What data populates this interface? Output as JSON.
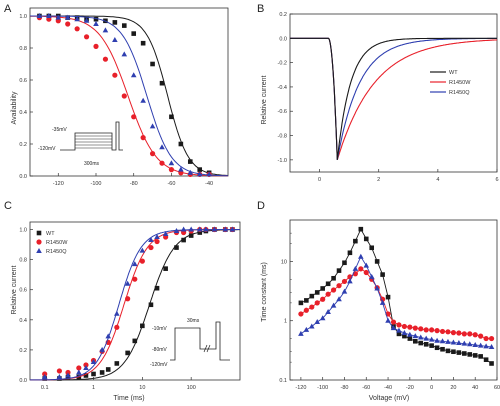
{
  "figure": {
    "panels": [
      {
        "letter": "A"
      },
      {
        "letter": "B"
      },
      {
        "letter": "C"
      },
      {
        "letter": "D"
      }
    ]
  },
  "colors": {
    "WT": "#1a1a1a",
    "R1450W": "#e8202a",
    "R1450Q": "#2f3fb0"
  },
  "chart_data": [
    {
      "panel": "A",
      "type": "scatter",
      "xlabel": "",
      "ylabel": "Availability",
      "xticks": [
        "-120",
        "-100",
        "-80",
        "-60",
        "-40"
      ],
      "yticks": [
        "0.0",
        "0.2",
        "0.4",
        "0.6",
        "0.8",
        "1.0"
      ],
      "xlim": [
        -135,
        -30
      ],
      "ylim": [
        0,
        1.05
      ],
      "fit": "boltzmann",
      "series": [
        {
          "key": "WT",
          "v_half": -62,
          "k": 5.5,
          "x": [
            -130,
            -125,
            -120,
            -115,
            -110,
            -105,
            -100,
            -95,
            -90,
            -85,
            -80,
            -75,
            -70,
            -65,
            -60,
            -55,
            -50,
            -45,
            -40
          ],
          "y": [
            1.0,
            1.0,
            1.0,
            0.99,
            0.99,
            0.98,
            0.98,
            0.97,
            0.96,
            0.94,
            0.89,
            0.83,
            0.7,
            0.58,
            0.37,
            0.2,
            0.09,
            0.04,
            0.02
          ]
        },
        {
          "key": "R1450W",
          "v_half": -83,
          "k": 7.5,
          "x": [
            -130,
            -125,
            -120,
            -115,
            -110,
            -105,
            -100,
            -95,
            -90,
            -85,
            -80,
            -75,
            -70,
            -65,
            -60,
            -55,
            -50,
            -45,
            -40
          ],
          "y": [
            0.99,
            0.98,
            0.97,
            0.95,
            0.92,
            0.87,
            0.81,
            0.73,
            0.63,
            0.5,
            0.37,
            0.24,
            0.14,
            0.08,
            0.04,
            0.02,
            0.01,
            0.01,
            0.01
          ]
        },
        {
          "key": "R1450Q",
          "v_half": -73,
          "k": 6.5,
          "x": [
            -130,
            -125,
            -120,
            -115,
            -110,
            -105,
            -100,
            -95,
            -90,
            -85,
            -80,
            -75,
            -70,
            -65,
            -60,
            -55,
            -50,
            -45,
            -40
          ],
          "y": [
            1.0,
            1.0,
            0.99,
            0.99,
            0.98,
            0.97,
            0.95,
            0.91,
            0.85,
            0.76,
            0.63,
            0.47,
            0.31,
            0.18,
            0.08,
            0.04,
            0.02,
            0.01,
            0.01
          ]
        }
      ],
      "inset": {
        "label_top": "-35mV",
        "label_mid": "-120mV",
        "label_bottom": "300ms"
      }
    },
    {
      "panel": "B",
      "type": "line",
      "xlabel": "",
      "ylabel": "Relative current",
      "xticks": [
        "0",
        "2",
        "4",
        "6"
      ],
      "yticks": [
        "0.2",
        "0.0",
        "-0.2",
        "-0.4",
        "-0.6",
        "-0.8",
        "-1.0"
      ],
      "xlim": [
        -1,
        6
      ],
      "ylim": [
        -1.1,
        0.2
      ],
      "legend_position": "right",
      "series": [
        {
          "key": "WT",
          "name": "WT",
          "onset": 0.3,
          "peak_t": 0.6,
          "peak": -1.0,
          "tau_rise": 0.1,
          "tau_decay": 0.45
        },
        {
          "key": "R1450W",
          "name": "R1450W",
          "onset": 0.3,
          "peak_t": 0.6,
          "peak": -1.0,
          "tau_rise": 0.1,
          "tau_decay": 1.25
        },
        {
          "key": "R1450Q",
          "name": "R1450Q",
          "onset": 0.3,
          "peak_t": 0.6,
          "peak": -1.0,
          "tau_rise": 0.1,
          "tau_decay": 0.75
        }
      ]
    },
    {
      "panel": "C",
      "type": "scatter",
      "xlabel": "Time (ms)",
      "ylabel": "Relative current",
      "xscale": "log",
      "xticks": [
        "0.1",
        "1",
        "10",
        "100"
      ],
      "yticks": [
        "0.0",
        "0.2",
        "0.4",
        "0.6",
        "0.8",
        "1.0"
      ],
      "xlim": [
        0.05,
        1000
      ],
      "ylim": [
        0,
        1.05
      ],
      "legend_position": "top-left",
      "series": [
        {
          "key": "WT",
          "name": "WT",
          "t_half": 14,
          "n": 1.7,
          "x": [
            0.1,
            0.2,
            0.3,
            0.5,
            0.7,
            1,
            1.5,
            2,
            3,
            5,
            7,
            10,
            15,
            20,
            30,
            50,
            70,
            100,
            150,
            200,
            300,
            500,
            700
          ],
          "y": [
            0.01,
            0.01,
            0.02,
            0.02,
            0.03,
            0.04,
            0.05,
            0.07,
            0.11,
            0.18,
            0.26,
            0.36,
            0.5,
            0.61,
            0.74,
            0.88,
            0.93,
            0.96,
            0.98,
            0.99,
            1.0,
            1.0,
            1.0
          ]
        },
        {
          "key": "R1450W",
          "name": "R1450W",
          "t_half": 4.2,
          "n": 1.8,
          "x": [
            0.1,
            0.2,
            0.3,
            0.5,
            0.7,
            1,
            1.5,
            2,
            3,
            5,
            7,
            10,
            15,
            20,
            30,
            50,
            70,
            100,
            150,
            200,
            300,
            500,
            700
          ],
          "y": [
            0.04,
            0.06,
            0.05,
            0.08,
            0.1,
            0.13,
            0.19,
            0.25,
            0.35,
            0.54,
            0.67,
            0.79,
            0.88,
            0.92,
            0.95,
            0.98,
            0.98,
            0.99,
            1.0,
            1.0,
            1.0,
            1.0,
            1.0
          ]
        },
        {
          "key": "R1450Q",
          "name": "R1450Q",
          "t_half": 3.3,
          "n": 1.9,
          "x": [
            0.1,
            0.2,
            0.3,
            0.5,
            0.7,
            1,
            1.5,
            2,
            3,
            5,
            7,
            10,
            15,
            20,
            30,
            50,
            70,
            100,
            150,
            200,
            300,
            500,
            700
          ],
          "y": [
            0.02,
            0.02,
            0.03,
            0.05,
            0.08,
            0.12,
            0.2,
            0.29,
            0.44,
            0.64,
            0.77,
            0.86,
            0.93,
            0.95,
            0.97,
            0.99,
            1.0,
            1.0,
            1.0,
            1.0,
            1.0,
            1.0,
            1.0
          ]
        }
      ],
      "inset": {
        "label_top": "30ms",
        "label_mid1": "-10mV",
        "label_mid2": "-80mV",
        "label_bottom": "-120mV"
      }
    },
    {
      "panel": "D",
      "type": "scatter",
      "xlabel": "Voltage (mV)",
      "ylabel": "Time constant (ms)",
      "yscale": "log",
      "xticks": [
        "-120",
        "-100",
        "-80",
        "-60",
        "-40",
        "-20",
        "0",
        "20",
        "40",
        "60"
      ],
      "yticks": [
        "0.1",
        "1",
        "10"
      ],
      "xlim": [
        -130,
        60
      ],
      "ylim": [
        0.1,
        50
      ],
      "series": [
        {
          "key": "WT",
          "x": [
            -120,
            -115,
            -110,
            -105,
            -100,
            -95,
            -90,
            -85,
            -80,
            -75,
            -70,
            -65,
            -60,
            -55,
            -50,
            -45,
            -40,
            -35,
            -30,
            -25,
            -20,
            -15,
            -10,
            -5,
            0,
            5,
            10,
            15,
            20,
            25,
            30,
            35,
            40,
            45,
            50,
            55
          ],
          "y": [
            2.0,
            2.2,
            2.6,
            3.0,
            3.5,
            4.2,
            5.2,
            7.0,
            9.5,
            14,
            22,
            35,
            24,
            17,
            10,
            6,
            2.5,
            0.8,
            0.6,
            0.55,
            0.5,
            0.45,
            0.42,
            0.4,
            0.38,
            0.35,
            0.33,
            0.31,
            0.3,
            0.29,
            0.28,
            0.27,
            0.26,
            0.25,
            0.22,
            0.19
          ]
        },
        {
          "key": "R1450W",
          "x": [
            -120,
            -115,
            -110,
            -105,
            -100,
            -95,
            -90,
            -85,
            -80,
            -75,
            -70,
            -65,
            -60,
            -55,
            -50,
            -45,
            -40,
            -35,
            -30,
            -25,
            -20,
            -15,
            -10,
            -5,
            0,
            5,
            10,
            15,
            20,
            25,
            30,
            35,
            40,
            45,
            50,
            55
          ],
          "y": [
            1.3,
            1.5,
            1.7,
            2.0,
            2.3,
            2.8,
            3.3,
            3.9,
            4.6,
            5.5,
            6.2,
            7.5,
            6.5,
            5.0,
            3.6,
            2.3,
            1.3,
            0.95,
            0.85,
            0.8,
            0.78,
            0.75,
            0.73,
            0.7,
            0.7,
            0.68,
            0.66,
            0.65,
            0.63,
            0.62,
            0.6,
            0.6,
            0.58,
            0.55,
            0.5,
            0.5
          ]
        },
        {
          "key": "R1450Q",
          "x": [
            -120,
            -115,
            -110,
            -105,
            -100,
            -95,
            -90,
            -85,
            -80,
            -75,
            -70,
            -65,
            -60,
            -55,
            -50,
            -45,
            -40,
            -35,
            -30,
            -25,
            -20,
            -15,
            -10,
            -5,
            0,
            5,
            10,
            15,
            20,
            25,
            30,
            35,
            40,
            45,
            50,
            55
          ],
          "y": [
            0.6,
            0.7,
            0.8,
            0.95,
            1.1,
            1.4,
            1.8,
            2.3,
            3.1,
            4.6,
            7.5,
            12,
            8.5,
            5.5,
            3.5,
            2.0,
            1.0,
            0.75,
            0.68,
            0.62,
            0.58,
            0.55,
            0.52,
            0.5,
            0.48,
            0.46,
            0.45,
            0.44,
            0.43,
            0.42,
            0.41,
            0.4,
            0.39,
            0.38,
            0.37,
            0.36
          ]
        }
      ]
    }
  ]
}
